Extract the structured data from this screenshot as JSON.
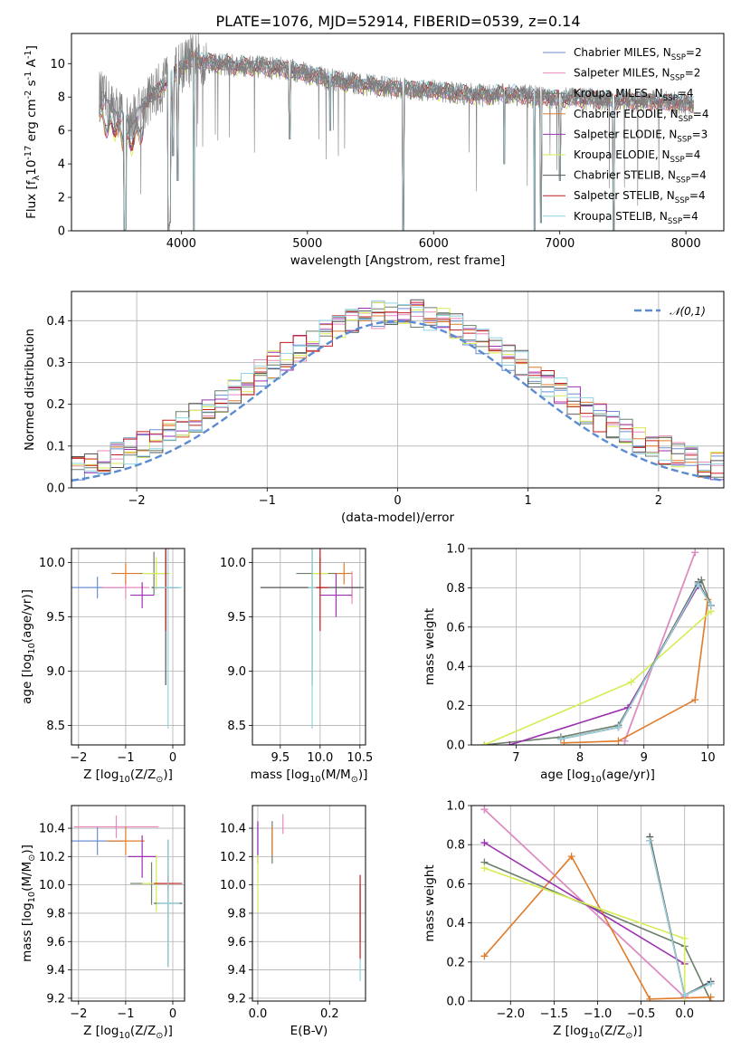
{
  "colors": {
    "chabrier_miles": "#6a8fd5",
    "salpeter_miles": "#e88abd",
    "kroupa_miles": "#6b7f6b",
    "chabrier_elodie": "#e07b2a",
    "salpeter_elodie": "#9b30b0",
    "kroupa_elodie": "#d6ec52",
    "chabrier_stelib": "#555555",
    "salpeter_stelib": "#c41c1c",
    "kroupa_stelib": "#8fd4e0",
    "gaussian": "#5b8bd0"
  },
  "chart_data": [
    {
      "type": "line",
      "title": "PLATE=1076, MJD=52914, FIBERID=0539, z=0.14",
      "xlabel": "wavelength [Angstrom, rest frame]",
      "ylabel": "Flux [f$_\\lambda$10$^{-17}$ erg cm$^{-2}$ s$^{-1}$ A$^{-1}$]",
      "xlim": [
        3130,
        8300
      ],
      "ylim": [
        0,
        11.8
      ],
      "xticks": [
        4000,
        5000,
        6000,
        7000,
        8000
      ],
      "yticks": [
        0,
        2,
        4,
        6,
        8,
        10
      ],
      "legend_position": "upper right",
      "legend": [
        "Chabrier MILES, N$_{SSP}$=2",
        "Salpeter MILES, N$_{SSP}$=2",
        "Kroupa MILES, N$_{SSP}$=4",
        "Chabrier ELODIE, N$_{SSP}$=4",
        "Salpeter ELODIE, N$_{SSP}$=3",
        "Kroupa ELODIE, N$_{SSP}$=4",
        "Chabrier STELIB, N$_{SSP}$=4",
        "Salpeter STELIB, N$_{SSP}$=4",
        "Kroupa STELIB, N$_{SSP}$=4"
      ],
      "continuum": {
        "x": [
          3350,
          3400,
          3500,
          3600,
          3700,
          3800,
          3900,
          4000,
          4100,
          4200,
          4400,
          4600,
          4800,
          5000,
          5200,
          5400,
          5600,
          5800,
          6000,
          6200,
          6400,
          6600,
          6800,
          7000,
          7200,
          7400,
          7600,
          7800,
          8000,
          8060
        ],
        "y": [
          8.1,
          7.7,
          7.1,
          6.4,
          7.5,
          8.3,
          9.0,
          9.8,
          10.3,
          10.1,
          9.9,
          9.8,
          9.7,
          9.4,
          9.0,
          8.8,
          8.6,
          8.5,
          8.4,
          8.2,
          8.1,
          8.2,
          8.0,
          7.9,
          7.9,
          7.8,
          7.8,
          7.7,
          7.6,
          7.6
        ]
      }
    },
    {
      "type": "line",
      "xlabel": "(data-model)/error",
      "ylabel": "Normed distribution",
      "xlim": [
        -2.5,
        2.5
      ],
      "ylim": [
        0,
        0.47
      ],
      "xticks": [
        -2,
        -1,
        0,
        1,
        2
      ],
      "yticks": [
        0.0,
        0.1,
        0.2,
        0.3,
        0.4
      ],
      "gaussian_label": "$\\mathcal{N}(0,1)$",
      "legend_position": "upper right",
      "histogram_bin_width": 0.1,
      "histogram_envelope": [
        0.03,
        0.04,
        0.05,
        0.06,
        0.08,
        0.1,
        0.12,
        0.15,
        0.18,
        0.21,
        0.24,
        0.27,
        0.3,
        0.33,
        0.36,
        0.38,
        0.39,
        0.4,
        0.4,
        0.39,
        0.37,
        0.35,
        0.32,
        0.29,
        0.25,
        0.22,
        0.18,
        0.15,
        0.12,
        0.1,
        0.08,
        0.06,
        0.05,
        0.04,
        0.03
      ]
    },
    {
      "type": "scatter",
      "xlabel": "Z [log$_{10}$(Z/Z$_\\odot$)]",
      "ylabel": "age  [log$_{10}$(age/yr)]",
      "xlim": [
        -2.15,
        0.25
      ],
      "ylim": [
        8.32,
        10.13
      ],
      "xticks": [
        -2,
        -1,
        0
      ],
      "yticks": [
        8.5,
        9.0,
        9.5,
        10.0
      ],
      "points": [
        {
          "x": -1.6,
          "y": 9.77,
          "xerr": 0.55,
          "yerr": 0.1,
          "c": "chabrier_miles"
        },
        {
          "x": -1.0,
          "y": 9.77,
          "xerr": 0.5,
          "yerr": 0.1,
          "c": "salpeter_miles"
        },
        {
          "x": -0.4,
          "y": 9.9,
          "xerr": 0.3,
          "yerr": 0.2,
          "c": "kroupa_miles"
        },
        {
          "x": -1.0,
          "y": 9.9,
          "xerr": 0.3,
          "yerr": 0.1,
          "c": "chabrier_elodie"
        },
        {
          "x": -0.65,
          "y": 9.7,
          "xerr": 0.25,
          "yerr": 0.12,
          "c": "salpeter_elodie"
        },
        {
          "x": -0.35,
          "y": 9.9,
          "xerr": 0.3,
          "yerr": 0.15,
          "c": "kroupa_elodie"
        },
        {
          "x": -0.15,
          "y": 9.77,
          "xerr": 0.3,
          "yerr": 0.9,
          "c": "chabrier_stelib"
        },
        {
          "x": -0.15,
          "y": 9.77,
          "xerr": 0.25,
          "yerr": 0.4,
          "c": "salpeter_stelib"
        },
        {
          "x": -0.1,
          "y": 9.77,
          "xerr": 0.3,
          "yerr": 1.3,
          "c": "kroupa_stelib"
        }
      ]
    },
    {
      "type": "scatter",
      "xlabel": "mass [log$_{10}$(M/M$_\\odot$)]",
      "ylabel": "",
      "xlim": [
        9.15,
        10.57
      ],
      "ylim": [
        8.32,
        10.13
      ],
      "xticks": [
        9.5,
        10.0,
        10.5
      ],
      "yticks": [
        8.5,
        9.0,
        9.5,
        10.0
      ],
      "points": [
        {
          "x": 10.4,
          "y": 9.77,
          "xerr": 0.1,
          "yerr": 0.1,
          "c": "chabrier_miles"
        },
        {
          "x": 10.4,
          "y": 9.77,
          "xerr": 0.1,
          "yerr": 0.15,
          "c": "salpeter_miles"
        },
        {
          "x": 10.0,
          "y": 9.9,
          "xerr": 0.3,
          "yerr": 0.15,
          "c": "kroupa_miles"
        },
        {
          "x": 10.3,
          "y": 9.9,
          "xerr": 0.1,
          "yerr": 0.1,
          "c": "chabrier_elodie"
        },
        {
          "x": 10.2,
          "y": 9.7,
          "xerr": 0.2,
          "yerr": 0.2,
          "c": "salpeter_elodie"
        },
        {
          "x": 10.0,
          "y": 9.9,
          "xerr": 0.1,
          "yerr": 0.1,
          "c": "kroupa_elodie"
        },
        {
          "x": 9.9,
          "y": 9.77,
          "xerr": 0.65,
          "yerr": 0.9,
          "c": "chabrier_stelib"
        },
        {
          "x": 10.0,
          "y": 9.77,
          "xerr": 0.1,
          "yerr": 0.4,
          "c": "salpeter_stelib"
        },
        {
          "x": 9.9,
          "y": 9.77,
          "xerr": 0.05,
          "yerr": 1.3,
          "c": "kroupa_stelib"
        }
      ]
    },
    {
      "type": "line",
      "xlabel": "age  [log$_{10}$(age/yr)]",
      "ylabel": "mass weight",
      "xlim": [
        6.3,
        10.25
      ],
      "ylim": [
        0,
        1.0
      ],
      "xticks": [
        7,
        8,
        9,
        10
      ],
      "yticks": [
        0.0,
        0.2,
        0.4,
        0.6,
        0.8,
        1.0
      ],
      "series": [
        {
          "c": "chabrier_miles",
          "x": [
            8.7,
            9.8
          ],
          "y": [
            0.02,
            0.98
          ]
        },
        {
          "c": "salpeter_miles",
          "x": [
            8.7,
            9.8
          ],
          "y": [
            0.02,
            0.98
          ]
        },
        {
          "c": "kroupa_miles",
          "x": [
            6.5,
            7.7,
            8.6,
            9.9,
            10.05
          ],
          "y": [
            0.0,
            0.04,
            0.1,
            0.84,
            0.71
          ]
        },
        {
          "c": "chabrier_elodie",
          "x": [
            7.75,
            8.6,
            9.8,
            10.0
          ],
          "y": [
            0.01,
            0.02,
            0.23,
            0.74
          ]
        },
        {
          "c": "salpeter_elodie",
          "x": [
            6.9,
            8.75,
            9.85
          ],
          "y": [
            0.0,
            0.19,
            0.81
          ]
        },
        {
          "c": "kroupa_elodie",
          "x": [
            6.5,
            8.8,
            10.05
          ],
          "y": [
            0.0,
            0.32,
            0.68
          ]
        },
        {
          "c": "chabrier_stelib",
          "x": [
            7.7,
            8.6,
            9.85,
            10.05
          ],
          "y": [
            0.03,
            0.09,
            0.83,
            0.71
          ]
        },
        {
          "c": "salpeter_stelib",
          "x": [
            7.7,
            8.6,
            9.85,
            10.05
          ],
          "y": [
            0.03,
            0.09,
            0.82,
            0.71
          ]
        },
        {
          "c": "kroupa_stelib",
          "x": [
            7.7,
            8.6,
            9.85,
            10.05
          ],
          "y": [
            0.03,
            0.09,
            0.82,
            0.71
          ]
        }
      ]
    },
    {
      "type": "scatter",
      "xlabel": "Z [log$_{10}$(Z/Z$_\\odot$)]",
      "ylabel": "mass [log$_{10}$(M/M$_\\odot$)]",
      "xlim": [
        -2.15,
        0.25
      ],
      "ylim": [
        9.18,
        10.56
      ],
      "xticks": [
        -2,
        -1,
        0
      ],
      "yticks": [
        9.2,
        9.4,
        9.6,
        9.8,
        10.0,
        10.2,
        10.4
      ],
      "points": [
        {
          "x": -1.6,
          "y": 10.31,
          "xerr": 0.55,
          "yerr": 0.1,
          "c": "chabrier_miles"
        },
        {
          "x": -1.2,
          "y": 10.41,
          "xerr": 0.9,
          "yerr": 0.08,
          "c": "salpeter_miles"
        },
        {
          "x": -0.45,
          "y": 10.01,
          "xerr": 0.45,
          "yerr": 0.15,
          "c": "kroupa_miles"
        },
        {
          "x": -1.0,
          "y": 10.31,
          "xerr": 0.4,
          "yerr": 0.1,
          "c": "chabrier_elodie"
        },
        {
          "x": -0.65,
          "y": 10.2,
          "xerr": 0.3,
          "yerr": 0.15,
          "c": "salpeter_elodie"
        },
        {
          "x": -0.35,
          "y": 10.01,
          "xerr": 0.3,
          "yerr": 0.2,
          "c": "kroupa_elodie"
        },
        {
          "x": -0.1,
          "y": 9.87,
          "xerr": 0.3,
          "yerr": 0.45,
          "c": "chabrier_stelib"
        },
        {
          "x": -0.1,
          "y": 10.01,
          "xerr": 0.3,
          "yerr": 0.06,
          "c": "salpeter_stelib"
        },
        {
          "x": -0.1,
          "y": 9.87,
          "xerr": 0.25,
          "yerr": 0.45,
          "c": "kroupa_stelib"
        }
      ]
    },
    {
      "type": "scatter",
      "xlabel": "E(B-V)",
      "ylabel": "",
      "xlim": [
        -0.015,
        0.3
      ],
      "ylim": [
        9.18,
        10.56
      ],
      "xticks": [
        0.0,
        0.2
      ],
      "yticks": [
        9.2,
        9.4,
        9.6,
        9.8,
        10.0,
        10.2,
        10.4
      ],
      "points": [
        {
          "x": 0.0,
          "y": 10.31,
          "yerr": 0.12,
          "c": "chabrier_miles"
        },
        {
          "x": 0.07,
          "y": 10.43,
          "yerr": 0.07,
          "c": "salpeter_miles"
        },
        {
          "x": 0.04,
          "y": 10.3,
          "yerr": 0.15,
          "c": "kroupa_miles"
        },
        {
          "x": 0.04,
          "y": 10.31,
          "yerr": 0.1,
          "c": "chabrier_elodie"
        },
        {
          "x": 0.0,
          "y": 10.3,
          "yerr": 0.15,
          "c": "salpeter_elodie"
        },
        {
          "x": 0.0,
          "y": 10.01,
          "yerr": 0.2,
          "c": "kroupa_elodie"
        },
        {
          "x": 0.285,
          "y": 9.8,
          "yerr": 0.2,
          "c": "chabrier_stelib"
        },
        {
          "x": 0.285,
          "y": 9.77,
          "yerr": 0.3,
          "c": "salpeter_stelib"
        },
        {
          "x": 0.285,
          "y": 9.4,
          "yerr": 0.08,
          "c": "kroupa_stelib"
        }
      ]
    },
    {
      "type": "line",
      "xlabel": "Z [log$_{10}$(Z/Z$_\\odot$)]",
      "ylabel": "mass weight",
      "xlim": [
        -2.45,
        0.45
      ],
      "ylim": [
        0,
        1.0
      ],
      "xticks": [
        -2.0,
        -1.5,
        -1.0,
        -0.5,
        0.0
      ],
      "yticks": [
        0.0,
        0.2,
        0.4,
        0.6,
        0.8,
        1.0
      ],
      "series": [
        {
          "c": "chabrier_miles",
          "x": [
            -2.3,
            0.0
          ],
          "y": [
            0.98,
            0.02
          ]
        },
        {
          "c": "salpeter_miles",
          "x": [
            -2.3,
            0.0
          ],
          "y": [
            0.98,
            0.02
          ]
        },
        {
          "c": "kroupa_miles",
          "x": [
            -2.3,
            0.0,
            0.3
          ],
          "y": [
            0.71,
            0.28,
            0.0
          ]
        },
        {
          "c": "chabrier_elodie",
          "x": [
            -2.3,
            -1.3,
            -0.4,
            0.3
          ],
          "y": [
            0.23,
            0.74,
            0.01,
            0.02
          ]
        },
        {
          "c": "salpeter_elodie",
          "x": [
            -2.3,
            0.0
          ],
          "y": [
            0.81,
            0.19
          ]
        },
        {
          "c": "kroupa_elodie",
          "x": [
            -2.3,
            0.0,
            0.0
          ],
          "y": [
            0.68,
            0.32,
            0.0
          ]
        },
        {
          "c": "chabrier_stelib",
          "x": [
            -0.4,
            0.0,
            0.3
          ],
          "y": [
            0.84,
            0.03,
            0.1
          ]
        },
        {
          "c": "salpeter_stelib",
          "x": [
            -0.4,
            0.0,
            0.3
          ],
          "y": [
            0.82,
            0.03,
            0.09
          ]
        },
        {
          "c": "kroupa_stelib",
          "x": [
            -0.4,
            0.0,
            0.3
          ],
          "y": [
            0.82,
            0.03,
            0.09
          ]
        }
      ]
    }
  ]
}
